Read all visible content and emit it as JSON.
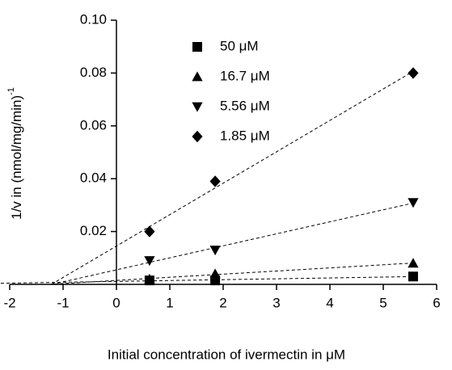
{
  "chart_data": {
    "type": "scatter",
    "xlabel": "Initial concentration of ivermectin in  μM",
    "ylabel": "1/v in (nmol/mg/min)",
    "ylabel_superscript": "-1",
    "xlim": [
      -2,
      6
    ],
    "xticks": [
      -2,
      -1,
      0,
      1,
      2,
      3,
      4,
      5,
      6
    ],
    "ylim": [
      0,
      0.1
    ],
    "yticks": [
      0.02,
      0.04,
      0.06,
      0.08,
      {
        "value": 0.1,
        "label": "0.10"
      }
    ],
    "legend": "upper left",
    "fit_lines": true,
    "series": [
      {
        "name": "50 μM",
        "color": "#000000",
        "marker": "square",
        "x": [
          0.62,
          1.85,
          5.56
        ],
        "values": [
          0.0015,
          0.0015,
          0.003
        ]
      },
      {
        "name": "16.7 μM",
        "color": "#000000",
        "marker": "triangle-up",
        "x": [
          0.62,
          1.85,
          5.56
        ],
        "values": [
          0.002,
          0.004,
          0.008
        ]
      },
      {
        "name": "5.56 μM",
        "color": "#000000",
        "marker": "triangle-down",
        "x": [
          0.62,
          1.85,
          5.56
        ],
        "values": [
          0.009,
          0.013,
          0.031
        ]
      },
      {
        "name": "1.85 μM",
        "color": "#000000",
        "marker": "diamond",
        "x": [
          0.62,
          1.85,
          5.56
        ],
        "values": [
          0.02,
          0.039,
          0.08
        ]
      }
    ]
  }
}
